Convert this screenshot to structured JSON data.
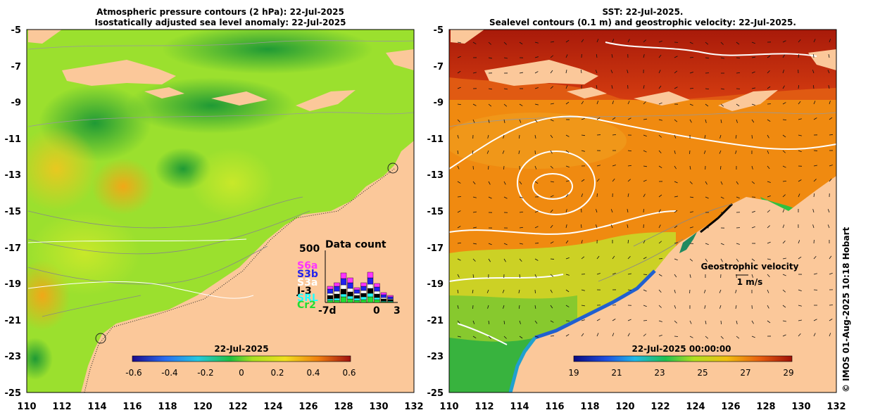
{
  "left_panel": {
    "title_line1": "Atmospheric pressure contours (2 hPa): 22-Jul-2025",
    "title_line2": "Isostatically adjusted sea level anomaly: 22-Jul-2025",
    "x_ticks": [
      "110",
      "112",
      "114",
      "116",
      "118",
      "120",
      "122",
      "124",
      "126",
      "128",
      "130",
      "132"
    ],
    "y_ticks": [
      "-5",
      "-7",
      "-9",
      "-11",
      "-13",
      "-15",
      "-17",
      "-19",
      "-21",
      "-23",
      "-25"
    ],
    "colorbar": {
      "title": "22-Jul-2025",
      "ticks": [
        "-0.6",
        "-0.4",
        "-0.2",
        "0",
        "0.2",
        "0.4",
        "0.6"
      ]
    },
    "data_count": {
      "title": "Data count",
      "ymax_label": "500",
      "x_labels": [
        "-7d",
        "0",
        "3"
      ],
      "missions": [
        {
          "label": "S6a",
          "color": "#ff33ff"
        },
        {
          "label": "S3b",
          "color": "#2222ee"
        },
        {
          "label": "S3a",
          "color": "#ffffff"
        },
        {
          "label": "J-3",
          "color": "#000000"
        },
        {
          "label": "SRL",
          "color": "#22ffff"
        },
        {
          "label": "Cr2",
          "color": "#22dd33"
        }
      ]
    }
  },
  "right_panel": {
    "title_line1": "SST: 22-Jul-2025.",
    "title_line2": "Sealevel contours (0.1 m) and geostrophic velocity: 22-Jul-2025.",
    "x_ticks": [
      "110",
      "112",
      "114",
      "116",
      "118",
      "120",
      "122",
      "124",
      "126",
      "128",
      "130",
      "132"
    ],
    "y_ticks": [
      "-5",
      "-7",
      "-9",
      "-11",
      "-13",
      "-15",
      "-17",
      "-19",
      "-21",
      "-23",
      "-25"
    ],
    "colorbar": {
      "title": "22-Jul-2025 00:00:00",
      "ticks": [
        "19",
        "21",
        "23",
        "25",
        "27",
        "29"
      ]
    },
    "velocity_label_line1": "Geostrophic velocity",
    "velocity_label_line2": "1 m/s"
  },
  "credit": "© IMOS 01-Aug-2025 10:18 Hobart",
  "colors": {
    "land": "#fbc89a",
    "ocean_left": "#9be02e",
    "ocean_right": "#f08a10",
    "warm_north": "#b8200c"
  }
}
